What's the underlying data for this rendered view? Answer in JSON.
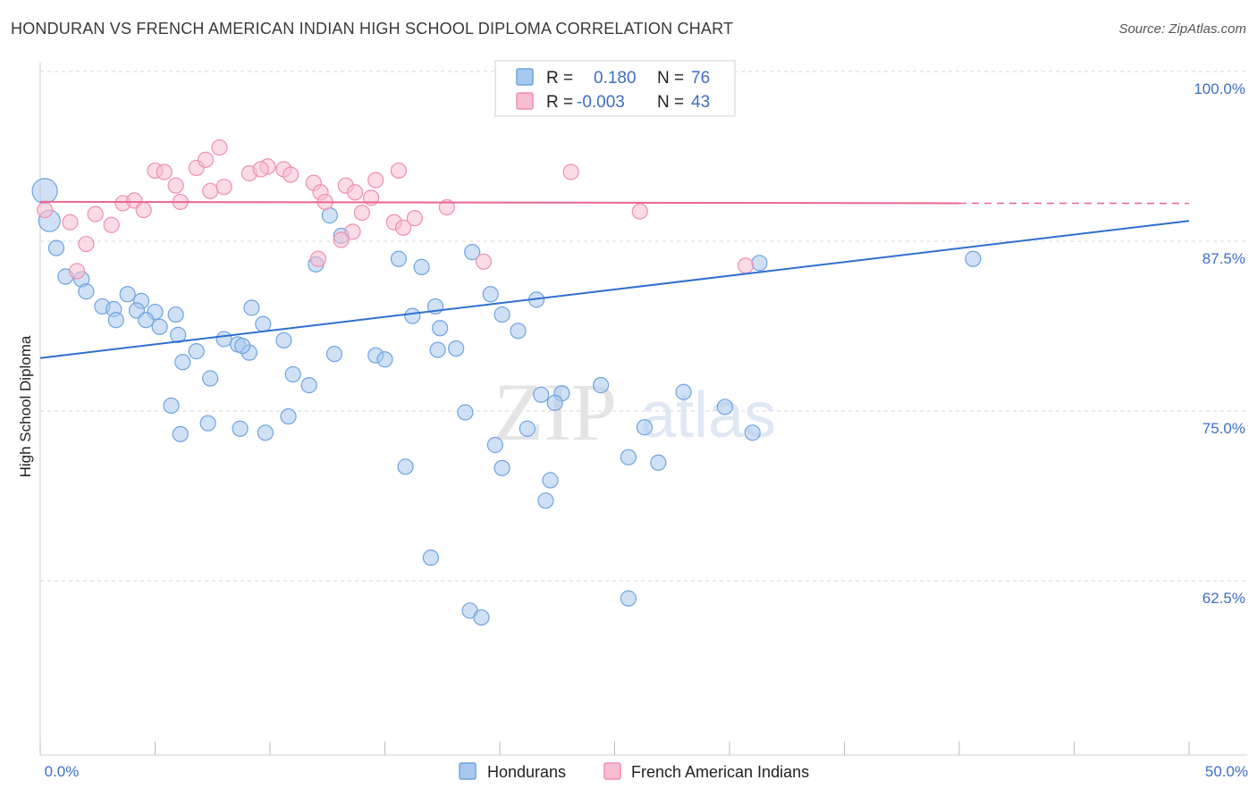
{
  "title": "HONDURAN VS FRENCH AMERICAN INDIAN HIGH SCHOOL DIPLOMA CORRELATION CHART",
  "source": "Source: ZipAtlas.com",
  "watermark": {
    "zip": "ZIP",
    "atlas": "atlas"
  },
  "colors": {
    "blue": "#6fa3e0",
    "blue_fill": "#a9c8ef",
    "blue_line": "#2f6fd0",
    "pink": "#f08fb0",
    "pink_fill": "#f7bdd0",
    "pink_line": "#e8668f",
    "grid": "#d9d9d9",
    "tick_text": "#3d6fc6"
  },
  "legend": {
    "row1": {
      "r_label": "R =",
      "r_value": "0.180",
      "n_label": "N =",
      "n_value": "76"
    },
    "row2": {
      "r_label": "R =",
      "r_value": "-0.003",
      "n_label": "N =",
      "n_value": "43"
    }
  },
  "bottom_legend": {
    "s1": "Hondurans",
    "s2": "French American Indians"
  },
  "chart_data": {
    "type": "scatter",
    "ylabel": "High School Diploma",
    "xlim": [
      0,
      50
    ],
    "ylim": [
      50,
      100
    ],
    "x_tick_labels": {
      "left": "0.0%",
      "right": "50.0%"
    },
    "y_ticks": [
      {
        "value": 100.0,
        "label": "100.0%"
      },
      {
        "value": 87.5,
        "label": "87.5%"
      },
      {
        "value": 75.0,
        "label": "75.0%"
      },
      {
        "value": 62.5,
        "label": "62.5%"
      }
    ],
    "grid": true,
    "series": [
      {
        "name": "Hondurans",
        "color": "blue",
        "trend": {
          "x0": 0,
          "y0": 78.9,
          "x1": 50,
          "y1": 89.0
        },
        "points": [
          [
            0.2,
            91.2
          ],
          [
            0.4,
            89.0
          ],
          [
            0.7,
            87.0
          ],
          [
            1.1,
            84.9
          ],
          [
            1.8,
            84.7
          ],
          [
            2.0,
            83.8
          ],
          [
            2.7,
            82.7
          ],
          [
            3.2,
            82.5
          ],
          [
            3.3,
            81.7
          ],
          [
            3.8,
            83.6
          ],
          [
            4.4,
            83.1
          ],
          [
            4.2,
            82.4
          ],
          [
            5.0,
            82.3
          ],
          [
            5.9,
            82.1
          ],
          [
            4.6,
            81.7
          ],
          [
            5.2,
            81.2
          ],
          [
            6.0,
            80.6
          ],
          [
            6.8,
            79.4
          ],
          [
            6.2,
            78.6
          ],
          [
            7.4,
            77.4
          ],
          [
            8.0,
            80.3
          ],
          [
            8.6,
            79.9
          ],
          [
            9.1,
            79.3
          ],
          [
            9.2,
            82.6
          ],
          [
            9.7,
            81.4
          ],
          [
            10.6,
            80.2
          ],
          [
            8.8,
            79.8
          ],
          [
            11.0,
            77.7
          ],
          [
            10.8,
            74.6
          ],
          [
            7.3,
            74.1
          ],
          [
            5.7,
            75.4
          ],
          [
            6.1,
            73.3
          ],
          [
            8.7,
            73.7
          ],
          [
            9.8,
            73.4
          ],
          [
            11.7,
            76.9
          ],
          [
            12.8,
            79.2
          ],
          [
            13.1,
            87.9
          ],
          [
            12.0,
            85.8
          ],
          [
            12.6,
            89.4
          ],
          [
            15.6,
            86.2
          ],
          [
            14.6,
            79.1
          ],
          [
            15.0,
            78.8
          ],
          [
            16.6,
            85.6
          ],
          [
            16.2,
            82.0
          ],
          [
            17.2,
            82.7
          ],
          [
            17.4,
            81.1
          ],
          [
            18.1,
            79.6
          ],
          [
            17.3,
            79.5
          ],
          [
            18.8,
            86.7
          ],
          [
            19.6,
            83.6
          ],
          [
            20.1,
            82.1
          ],
          [
            20.8,
            80.9
          ],
          [
            21.6,
            83.2
          ],
          [
            22.7,
            76.3
          ],
          [
            22.4,
            75.6
          ],
          [
            21.2,
            73.7
          ],
          [
            22.2,
            69.9
          ],
          [
            20.1,
            70.8
          ],
          [
            18.5,
            74.9
          ],
          [
            19.8,
            72.5
          ],
          [
            21.8,
            76.2
          ],
          [
            15.9,
            70.9
          ],
          [
            17.0,
            64.2
          ],
          [
            18.7,
            60.3
          ],
          [
            19.2,
            59.8
          ],
          [
            25.6,
            71.6
          ],
          [
            24.4,
            76.9
          ],
          [
            26.3,
            73.8
          ],
          [
            26.9,
            71.2
          ],
          [
            22.0,
            68.4
          ],
          [
            28.0,
            76.4
          ],
          [
            29.8,
            75.3
          ],
          [
            31.3,
            85.9
          ],
          [
            31.0,
            73.4
          ],
          [
            40.6,
            86.2
          ],
          [
            25.6,
            61.2
          ]
        ]
      },
      {
        "name": "French American Indians",
        "color": "pink",
        "trend": {
          "x0": 0,
          "y0": 90.4,
          "x1": 40,
          "y1": 90.3,
          "dash_to": 50
        },
        "points": [
          [
            0.2,
            89.8
          ],
          [
            1.3,
            88.9
          ],
          [
            2.0,
            87.3
          ],
          [
            1.6,
            85.3
          ],
          [
            2.4,
            89.5
          ],
          [
            3.1,
            88.7
          ],
          [
            3.6,
            90.3
          ],
          [
            4.1,
            90.5
          ],
          [
            4.5,
            89.8
          ],
          [
            5.0,
            92.7
          ],
          [
            5.4,
            92.6
          ],
          [
            5.9,
            91.6
          ],
          [
            6.1,
            90.4
          ],
          [
            6.8,
            92.9
          ],
          [
            7.2,
            93.5
          ],
          [
            7.4,
            91.2
          ],
          [
            8.0,
            91.5
          ],
          [
            7.8,
            94.4
          ],
          [
            9.1,
            92.5
          ],
          [
            9.9,
            93.0
          ],
          [
            9.6,
            92.8
          ],
          [
            10.6,
            92.8
          ],
          [
            10.9,
            92.4
          ],
          [
            11.9,
            91.8
          ],
          [
            12.2,
            91.1
          ],
          [
            12.4,
            90.4
          ],
          [
            13.3,
            91.6
          ],
          [
            13.7,
            91.1
          ],
          [
            14.6,
            92.0
          ],
          [
            14.4,
            90.7
          ],
          [
            15.6,
            92.7
          ],
          [
            14.0,
            89.6
          ],
          [
            15.4,
            88.9
          ],
          [
            16.3,
            89.2
          ],
          [
            13.6,
            88.2
          ],
          [
            15.8,
            88.5
          ],
          [
            13.1,
            87.6
          ],
          [
            17.7,
            90.0
          ],
          [
            12.1,
            86.2
          ],
          [
            19.3,
            86.0
          ],
          [
            23.1,
            92.6
          ],
          [
            26.1,
            89.7
          ],
          [
            30.7,
            85.7
          ]
        ]
      }
    ]
  }
}
